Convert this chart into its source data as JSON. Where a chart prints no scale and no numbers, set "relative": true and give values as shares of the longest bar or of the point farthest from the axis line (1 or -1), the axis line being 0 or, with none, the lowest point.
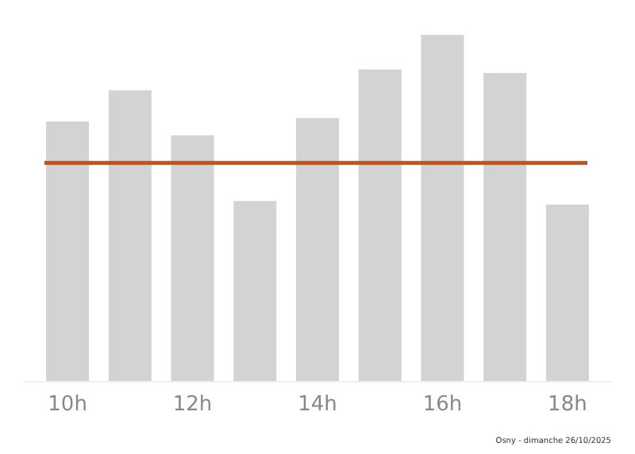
{
  "chart_data": {
    "type": "bar",
    "relative": true,
    "categories": [
      "10h",
      null,
      "12h",
      null,
      "14h",
      null,
      "16h",
      null,
      "18h"
    ],
    "values": [
      0.75,
      0.84,
      0.71,
      0.52,
      0.76,
      0.9,
      1,
      0.89,
      0.51
    ],
    "color": "#d3d3d3",
    "ref_lines": [
      {
        "axis": "y",
        "value": 0.63,
        "color": "#c4501b"
      }
    ],
    "annotations": [
      "Osny - dimanche 26/10/2025"
    ],
    "grid": false
  }
}
